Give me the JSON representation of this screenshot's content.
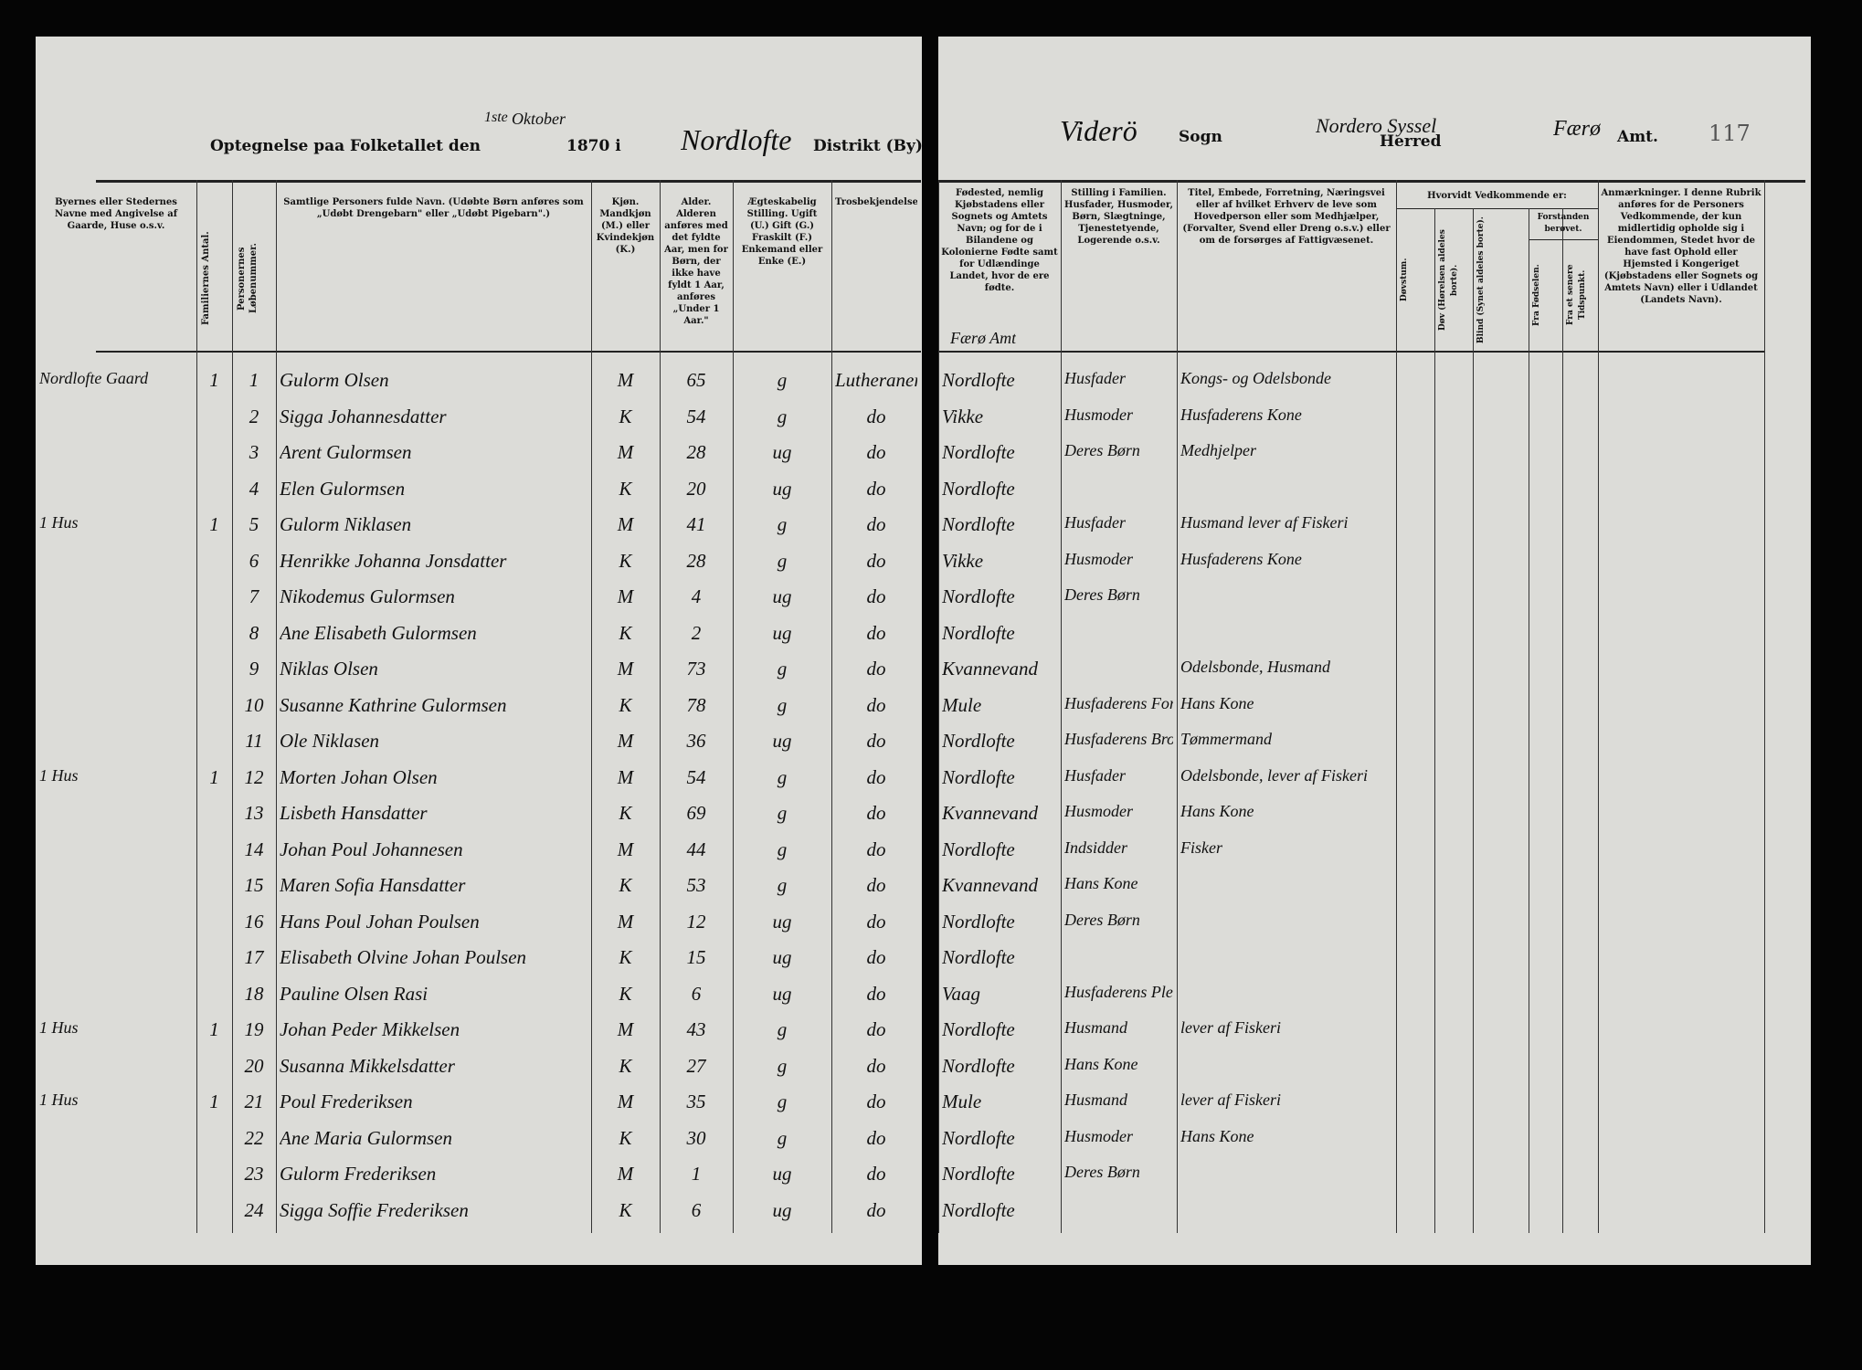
{
  "left_header": {
    "title": "Optegnelse paa Folketallet den",
    "day": "1ste",
    "month": "Oktober",
    "year": "1870 i",
    "district": "Nordlofte",
    "district_label": "Distrikt (By)"
  },
  "right_header": {
    "parish": "Viderö",
    "parish_label": "Sogn",
    "herred": "Nordero Syssel",
    "herred_label": "Herred",
    "amt": "Færø",
    "amt_label": "Amt.",
    "page_number": "117"
  },
  "columns_left": [
    "Byernes eller Stedernes Navne med Angivelse af Gaarde, Huse o.s.v.",
    "Familiernes Antal.",
    "Personernes Løbenummer.",
    "Samtlige Personers fulde Navn. (Udøbte Børn anføres som „Udøbt Drengebarn\" eller „Udøbt Pigebarn\".)",
    "Kjøn. Mandkjøn (M.) eller Kvindekjøn (K.)",
    "Alder. Alderen anføres med det fyldte Aar, men for Børn, der ikke have fyldt 1 Aar, anføres „Under 1 Aar.\"",
    "Ægteskabelig Stilling. Ugift (U.) Gift (G.) Fraskilt (F.) Enkemand eller Enke (E.)",
    "Trosbekjendelse."
  ],
  "columns_right": [
    "Fødested, nemlig Kjøbstadens eller Sognets og Amtets Navn; og for de i Bilandene og Kolonierne Fødte samt for Udlændinge Landet, hvor de ere fødte.",
    "Stilling i Familien. Husfader, Husmoder, Børn, Slægtninge, Tjenestetyende, Logerende o.s.v.",
    "Titel, Embede, Forretning, Næringsvei eller af hvilket Erhverv de leve som Hovedperson eller som Medhjælper, (Forvalter, Svend eller Dreng o.s.v.) eller om de forsørges af Fattigvæsenet.",
    "Døvstum.",
    "Døv (Hørelsen aldeles borte).",
    "Blind (Synet aldeles borte).",
    "Fra Fødselen.",
    "Fra et senere Tidspunkt.",
    "Anmærkninger. I denne Rubrik anføres for de Personers Vedkommende, der kun midlertidig opholde sig i Eiendommen, Stedet hvor de have fast Ophold eller Hjemsted i Kongeriget (Kjøbstadens eller Sognets og Amtets Navn) eller i Udlandet (Landets Navn)."
  ],
  "disability_group": "Hvorvidt Vedkommende er:",
  "insanity_group": "Forstanden berøvet.",
  "birthplace_note": "Færø Amt",
  "rows": [
    [
      "Nordlofte Gaard",
      "1",
      "1",
      "Gulorm Olsen",
      "M",
      "65",
      "g",
      "Lutheraner",
      "Nordlofte",
      "Husfader",
      "Kongs- og Odelsbonde"
    ],
    [
      null,
      null,
      "2",
      "Sigga Johannesdatter",
      "K",
      "54",
      "g",
      "do",
      "Vikke",
      "Husmoder",
      "Husfaderens Kone"
    ],
    [
      null,
      null,
      "3",
      "Arent Gulormsen",
      "M",
      "28",
      "ug",
      "do",
      "Nordlofte",
      "Deres Børn",
      "Medhjelper"
    ],
    [
      null,
      null,
      "4",
      "Elen Gulormsen",
      "K",
      "20",
      "ug",
      "do",
      "Nordlofte",
      null,
      null
    ],
    [
      "1 Hus",
      "1",
      "5",
      "Gulorm Niklasen",
      "M",
      "41",
      "g",
      "do",
      "Nordlofte",
      "Husfader",
      "Husmand lever af Fiskeri"
    ],
    [
      null,
      null,
      "6",
      "Henrikke Johanna Jonsdatter",
      "K",
      "28",
      "g",
      "do",
      "Vikke",
      "Husmoder",
      "Husfaderens Kone"
    ],
    [
      null,
      null,
      "7",
      "Nikodemus Gulormsen",
      "M",
      "4",
      "ug",
      "do",
      "Nordlofte",
      "Deres Børn",
      null
    ],
    [
      null,
      null,
      "8",
      "Ane Elisabeth Gulormsen",
      "K",
      "2",
      "ug",
      "do",
      "Nordlofte",
      null,
      null
    ],
    [
      null,
      null,
      "9",
      "Niklas Olsen",
      "M",
      "73",
      "g",
      "do",
      "Kvannevand",
      null,
      "Odelsbonde, Husmand"
    ],
    [
      null,
      null,
      "10",
      "Susanne Kathrine Gulormsen",
      "K",
      "78",
      "g",
      "do",
      "Mule",
      "Husfaderens Forældre",
      "Hans Kone"
    ],
    [
      null,
      null,
      "11",
      "Ole Niklasen",
      "M",
      "36",
      "ug",
      "do",
      "Nordlofte",
      "Husfaderens Broder",
      "Tømmermand"
    ],
    [
      "1 Hus",
      "1",
      "12",
      "Morten Johan Olsen",
      "M",
      "54",
      "g",
      "do",
      "Nordlofte",
      "Husfader",
      "Odelsbonde, lever af Fiskeri"
    ],
    [
      null,
      null,
      "13",
      "Lisbeth Hansdatter",
      "K",
      "69",
      "g",
      "do",
      "Kvannevand",
      "Husmoder",
      "Hans Kone"
    ],
    [
      null,
      null,
      "14",
      "Johan Poul Johannesen",
      "M",
      "44",
      "g",
      "do",
      "Nordlofte",
      "Indsidder",
      "Fisker"
    ],
    [
      null,
      null,
      "15",
      "Maren Sofia Hansdatter",
      "K",
      "53",
      "g",
      "do",
      "Kvannevand",
      "Hans Kone",
      null
    ],
    [
      null,
      null,
      "16",
      "Hans Poul Johan Poulsen",
      "M",
      "12",
      "ug",
      "do",
      "Nordlofte",
      "Deres Børn",
      null
    ],
    [
      null,
      null,
      "17",
      "Elisabeth Olvine Johan Poulsen",
      "K",
      "15",
      "ug",
      "do",
      "Nordlofte",
      null,
      null
    ],
    [
      null,
      null,
      "18",
      "Pauline Olsen Rasi",
      "K",
      "6",
      "ug",
      "do",
      "Vaag",
      "Husfaderens Pleiebarn",
      null
    ],
    [
      "1 Hus",
      "1",
      "19",
      "Johan Peder Mikkelsen",
      "M",
      "43",
      "g",
      "do",
      "Nordlofte",
      "Husmand",
      "lever af Fiskeri"
    ],
    [
      null,
      null,
      "20",
      "Susanna Mikkelsdatter",
      "K",
      "27",
      "g",
      "do",
      "Nordlofte",
      "Hans Kone",
      null
    ],
    [
      "1 Hus",
      "1",
      "21",
      "Poul Frederiksen",
      "M",
      "35",
      "g",
      "do",
      "Mule",
      "Husmand",
      "lever af Fiskeri"
    ],
    [
      null,
      null,
      "22",
      "Ane Maria Gulormsen",
      "K",
      "30",
      "g",
      "do",
      "Nordlofte",
      "Husmoder",
      "Hans Kone"
    ],
    [
      null,
      null,
      "23",
      "Gulorm Frederiksen",
      "M",
      "1",
      "ug",
      "do",
      "Nordlofte",
      "Deres Børn",
      null
    ],
    [
      null,
      null,
      "24",
      "Sigga Soffie Frederiksen",
      "K",
      "6",
      "ug",
      "do",
      "Nordlofte",
      null,
      null
    ]
  ]
}
